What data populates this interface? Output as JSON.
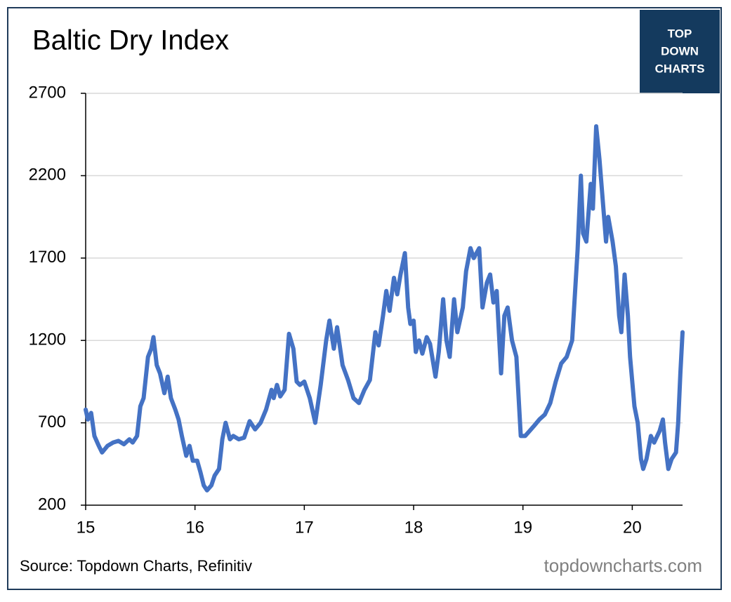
{
  "chart_data": {
    "type": "line",
    "title": "Baltic Dry Index",
    "logo": [
      "TOP",
      "DOWN",
      "CHARTS"
    ],
    "source": "Source: Topdown Charts, Refinitiv",
    "watermark": "topdowncharts.com",
    "color": "#4472c4",
    "xlim": [
      15,
      20.46
    ],
    "xticks": [
      15,
      16,
      17,
      18,
      19,
      20
    ],
    "ylim": [
      200,
      2700
    ],
    "yticks": [
      200,
      700,
      1200,
      1700,
      2200,
      2700
    ],
    "grid": true,
    "x": [
      15.0,
      15.02,
      15.05,
      15.08,
      15.12,
      15.15,
      15.2,
      15.25,
      15.3,
      15.35,
      15.4,
      15.43,
      15.47,
      15.5,
      15.53,
      15.57,
      15.6,
      15.62,
      15.65,
      15.68,
      15.72,
      15.75,
      15.78,
      15.82,
      15.85,
      15.88,
      15.92,
      15.95,
      15.98,
      16.02,
      16.05,
      16.08,
      16.11,
      16.15,
      16.18,
      16.22,
      16.25,
      16.28,
      16.32,
      16.35,
      16.4,
      16.45,
      16.5,
      16.55,
      16.6,
      16.65,
      16.7,
      16.72,
      16.75,
      16.78,
      16.82,
      16.86,
      16.9,
      16.93,
      16.96,
      17.0,
      17.05,
      17.1,
      17.15,
      17.2,
      17.23,
      17.27,
      17.3,
      17.35,
      17.4,
      17.45,
      17.5,
      17.55,
      17.6,
      17.65,
      17.68,
      17.72,
      17.75,
      17.78,
      17.82,
      17.85,
      17.88,
      17.92,
      17.95,
      17.97,
      18.0,
      18.02,
      18.05,
      18.08,
      18.12,
      18.15,
      18.2,
      18.23,
      18.27,
      18.3,
      18.33,
      18.37,
      18.4,
      18.45,
      18.48,
      18.52,
      18.55,
      18.6,
      18.63,
      18.67,
      18.7,
      18.73,
      18.76,
      18.8,
      18.83,
      18.86,
      18.9,
      18.94,
      18.98,
      19.02,
      19.06,
      19.1,
      19.15,
      19.2,
      19.25,
      19.3,
      19.35,
      19.4,
      19.45,
      19.5,
      19.53,
      19.55,
      19.58,
      19.62,
      19.64,
      19.67,
      19.7,
      19.73,
      19.76,
      19.78,
      19.82,
      19.85,
      19.88,
      19.9,
      19.93,
      19.96,
      19.98,
      20.02,
      20.05,
      20.08,
      20.1,
      20.13,
      20.17,
      20.2,
      20.25,
      20.28,
      20.3,
      20.33,
      20.36,
      20.4,
      20.42,
      20.44,
      20.46
    ],
    "values": [
      780,
      720,
      760,
      620,
      560,
      520,
      560,
      580,
      590,
      570,
      600,
      580,
      620,
      800,
      850,
      1100,
      1150,
      1220,
      1050,
      1000,
      880,
      980,
      850,
      780,
      720,
      620,
      500,
      560,
      470,
      470,
      400,
      320,
      290,
      320,
      380,
      420,
      600,
      700,
      600,
      620,
      600,
      610,
      710,
      660,
      700,
      780,
      900,
      850,
      930,
      860,
      900,
      1240,
      1150,
      950,
      930,
      950,
      850,
      700,
      930,
      1200,
      1320,
      1150,
      1280,
      1050,
      960,
      850,
      820,
      900,
      960,
      1250,
      1170,
      1350,
      1500,
      1380,
      1580,
      1480,
      1600,
      1730,
      1400,
      1300,
      1320,
      1130,
      1200,
      1120,
      1220,
      1180,
      980,
      1130,
      1450,
      1200,
      1100,
      1450,
      1250,
      1400,
      1620,
      1760,
      1700,
      1760,
      1400,
      1550,
      1600,
      1430,
      1500,
      1000,
      1350,
      1400,
      1200,
      1100,
      620,
      620,
      650,
      680,
      720,
      750,
      820,
      950,
      1060,
      1100,
      1200,
      1750,
      2200,
      1850,
      1800,
      2150,
      2000,
      2500,
      2300,
      2050,
      1800,
      1950,
      1800,
      1650,
      1350,
      1250,
      1600,
      1350,
      1100,
      800,
      700,
      480,
      420,
      480,
      620,
      580,
      650,
      720,
      580,
      420,
      480,
      520,
      700,
      1000,
      1250
    ]
  }
}
